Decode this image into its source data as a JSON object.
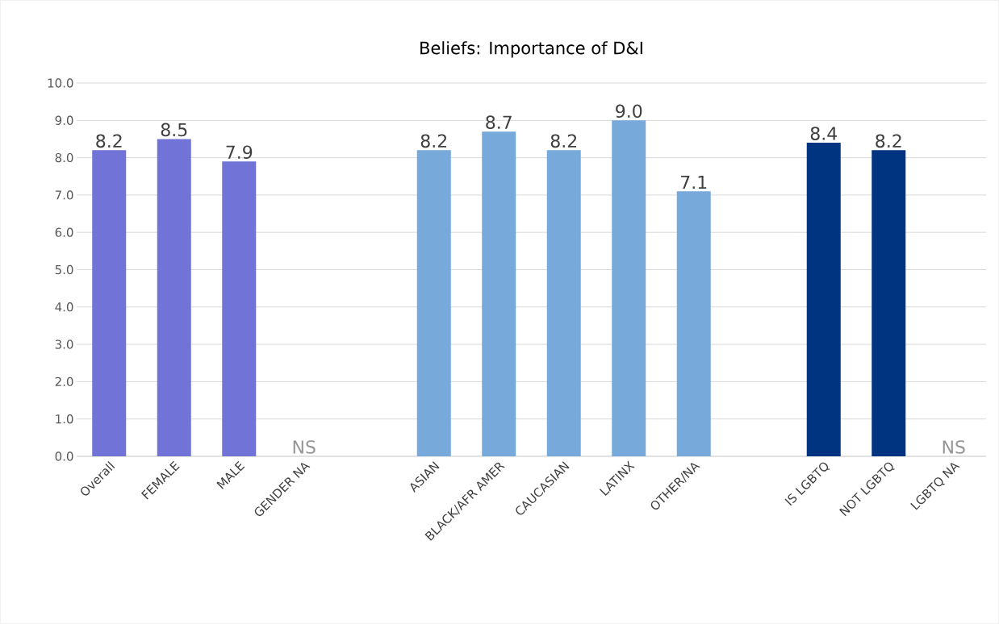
{
  "chart_data": {
    "type": "bar",
    "title": "Beliefs: Importance of D&I",
    "categories": [
      "Overall",
      "FEMALE",
      "MALE",
      "GENDER NA",
      null,
      "ASIAN",
      "BLACK/AFR AMER",
      "CAUCASIAN",
      "LATINX",
      "OTHER/NA",
      null,
      "IS LGBTQ",
      "NOT LGBTQ",
      "LGBTQ NA"
    ],
    "values": [
      8.2,
      8.5,
      7.9,
      null,
      null,
      8.2,
      8.7,
      8.2,
      9.0,
      7.1,
      null,
      8.4,
      8.2,
      null
    ],
    "colors": [
      "#7174d6",
      "#7174d6",
      "#7174d6",
      null,
      null,
      "#77aadb",
      "#77aadb",
      "#77aadb",
      "#77aadb",
      "#77aadb",
      null,
      "#003380",
      "#003380",
      null
    ],
    "value_labels": [
      "8.2",
      "8.5",
      "7.9",
      "NS",
      null,
      "8.2",
      "8.7",
      "8.2",
      "9.0",
      "7.1",
      null,
      "8.4",
      "8.2",
      "NS"
    ],
    "ylim": [
      0,
      10
    ],
    "yticks": [
      {
        "value": 0,
        "label": "0.0"
      },
      {
        "value": 1,
        "label": "1.0"
      },
      {
        "value": 2,
        "label": "2.0"
      },
      {
        "value": 3,
        "label": "3.0"
      },
      {
        "value": 4,
        "label": "4.0"
      },
      {
        "value": 5,
        "label": "5.0"
      },
      {
        "value": 6,
        "label": "6.0"
      },
      {
        "value": 7,
        "label": "7.0"
      },
      {
        "value": 8,
        "label": "8.0"
      },
      {
        "value": 9,
        "label": "9.0"
      },
      {
        "value": 10,
        "label": "10.0"
      }
    ],
    "grid": "y"
  }
}
